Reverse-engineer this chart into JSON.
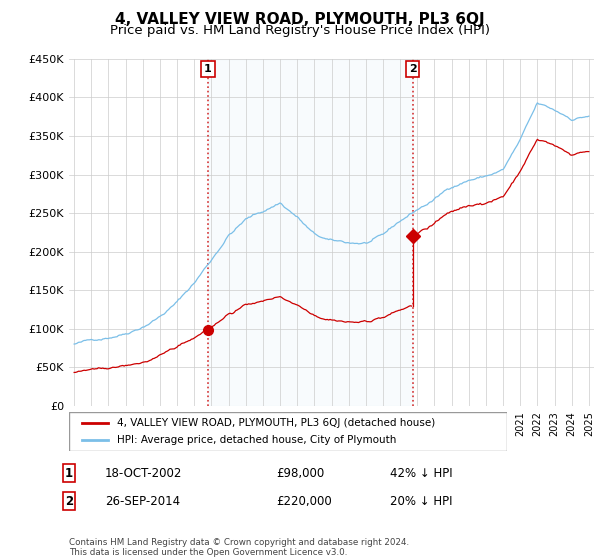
{
  "title": "4, VALLEY VIEW ROAD, PLYMOUTH, PL3 6QJ",
  "subtitle": "Price paid vs. HM Land Registry's House Price Index (HPI)",
  "title_fontsize": 11,
  "subtitle_fontsize": 9.5,
  "background_color": "#ffffff",
  "plot_bg_color": "#ffffff",
  "grid_color": "#cccccc",
  "hpi_color": "#7bbfe8",
  "hpi_fill_color": "#daedf8",
  "price_color": "#cc0000",
  "ylim": [
    0,
    450000
  ],
  "yticks": [
    0,
    50000,
    100000,
    150000,
    200000,
    250000,
    300000,
    350000,
    400000,
    450000
  ],
  "ytick_labels": [
    "£0",
    "£50K",
    "£100K",
    "£150K",
    "£200K",
    "£250K",
    "£300K",
    "£350K",
    "£400K",
    "£450K"
  ],
  "xlim_start": 1994.7,
  "xlim_end": 2025.3,
  "sale1_year": 2002.8,
  "sale1_price": 98000,
  "sale2_year": 2014.73,
  "sale2_price": 220000,
  "sale2_prior_price": 155000,
  "legend_label1": "4, VALLEY VIEW ROAD, PLYMOUTH, PL3 6QJ (detached house)",
  "legend_label2": "HPI: Average price, detached house, City of Plymouth",
  "transaction1_label": "1",
  "transaction1_date": "18-OCT-2002",
  "transaction1_price": "£98,000",
  "transaction1_hpi": "42% ↓ HPI",
  "transaction2_label": "2",
  "transaction2_date": "26-SEP-2014",
  "transaction2_price": "£220,000",
  "transaction2_hpi": "20% ↓ HPI",
  "footer": "Contains HM Land Registry data © Crown copyright and database right 2024.\nThis data is licensed under the Open Government Licence v3.0."
}
